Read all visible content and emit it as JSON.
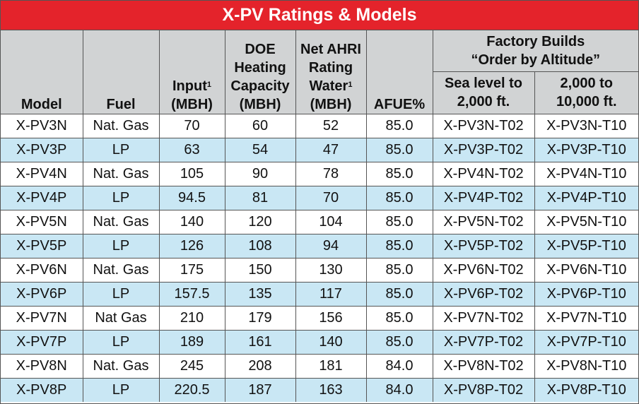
{
  "title": "X-PV Ratings & Models",
  "headers": {
    "model": "Model",
    "fuel": "Fuel",
    "input_line1": "Input",
    "input_sup": "1",
    "input_line2": "(MBH)",
    "doe_line1": "DOE",
    "doe_line2": "Heating",
    "doe_line3": "Capacity",
    "doe_line4": "(MBH)",
    "ahri_line1": "Net AHRI",
    "ahri_line2": "Rating",
    "ahri_line3": "Water",
    "ahri_sup": "1",
    "ahri_line4": "(MBH)",
    "afue": "AFUE%",
    "factory_line1": "Factory Builds",
    "factory_line2": "“Order by Altitude”",
    "sea_line1": "Sea level to",
    "sea_line2": "2,000 ft.",
    "alt_line1": "2,000 to",
    "alt_line2": "10,000 ft."
  },
  "rows": [
    {
      "model": "X-PV3N",
      "fuel": "Nat. Gas",
      "input": "70",
      "doe": "60",
      "ahri": "52",
      "afue": "85.0",
      "sea": "X-PV3N-T02",
      "alt": "X-PV3N-T10"
    },
    {
      "model": "X-PV3P",
      "fuel": "LP",
      "input": "63",
      "doe": "54",
      "ahri": "47",
      "afue": "85.0",
      "sea": "X-PV3P-T02",
      "alt": "X-PV3P-T10"
    },
    {
      "model": "X-PV4N",
      "fuel": "Nat. Gas",
      "input": "105",
      "doe": "90",
      "ahri": "78",
      "afue": "85.0",
      "sea": "X-PV4N-T02",
      "alt": "X-PV4N-T10"
    },
    {
      "model": "X-PV4P",
      "fuel": "LP",
      "input": "94.5",
      "doe": "81",
      "ahri": "70",
      "afue": "85.0",
      "sea": "X-PV4P-T02",
      "alt": "X-PV4P-T10"
    },
    {
      "model": "X-PV5N",
      "fuel": "Nat. Gas",
      "input": "140",
      "doe": "120",
      "ahri": "104",
      "afue": "85.0",
      "sea": "X-PV5N-T02",
      "alt": "X-PV5N-T10"
    },
    {
      "model": "X-PV5P",
      "fuel": "LP",
      "input": "126",
      "doe": "108",
      "ahri": "94",
      "afue": "85.0",
      "sea": "X-PV5P-T02",
      "alt": "X-PV5P-T10"
    },
    {
      "model": "X-PV6N",
      "fuel": "Nat. Gas",
      "input": "175",
      "doe": "150",
      "ahri": "130",
      "afue": "85.0",
      "sea": "X-PV6N-T02",
      "alt": "X-PV6N-T10"
    },
    {
      "model": "X-PV6P",
      "fuel": "LP",
      "input": "157.5",
      "doe": "135",
      "ahri": "117",
      "afue": "85.0",
      "sea": "X-PV6P-T02",
      "alt": "X-PV6P-T10"
    },
    {
      "model": "X-PV7N",
      "fuel": "Nat Gas",
      "input": "210",
      "doe": "179",
      "ahri": "156",
      "afue": "85.0",
      "sea": "X-PV7N-T02",
      "alt": "X-PV7N-T10"
    },
    {
      "model": "X-PV7P",
      "fuel": "LP",
      "input": "189",
      "doe": "161",
      "ahri": "140",
      "afue": "85.0",
      "sea": "X-PV7P-T02",
      "alt": "X-PV7P-T10"
    },
    {
      "model": "X-PV8N",
      "fuel": "Nat. Gas",
      "input": "245",
      "doe": "208",
      "ahri": "181",
      "afue": "84.0",
      "sea": "X-PV8N-T02",
      "alt": "X-PV8N-T10"
    },
    {
      "model": "X-PV8P",
      "fuel": "LP",
      "input": "220.5",
      "doe": "187",
      "ahri": "163",
      "afue": "84.0",
      "sea": "X-PV8P-T02",
      "alt": "X-PV8P-T10"
    }
  ]
}
